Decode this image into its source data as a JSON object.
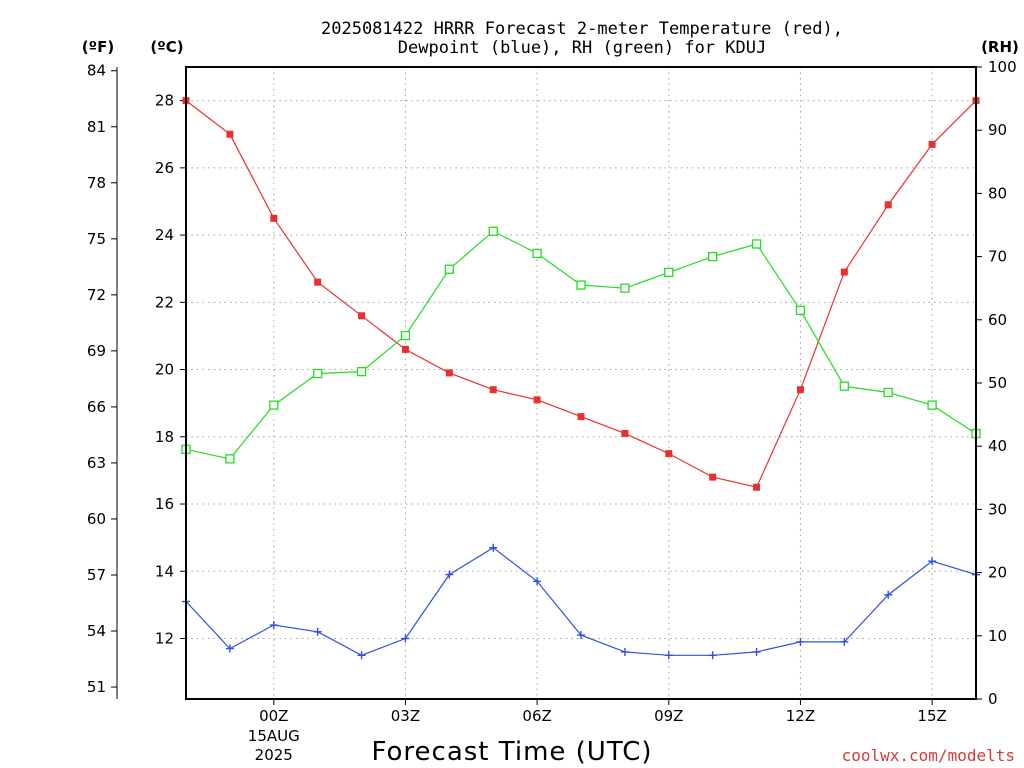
{
  "chart_data": {
    "type": "line",
    "title": [
      "2025081422 HRRR Forecast 2-meter Temperature (red),",
      "Dewpoint (blue), RH (green) for KDUJ"
    ],
    "xlabel": "Forecast Time (UTC)",
    "credit": "coolwx.com/modelts",
    "units": {
      "left_f": "(ºF)",
      "left_c": "(ºC)",
      "right_rh": "(RH)"
    },
    "x_hours": [
      -2,
      -1,
      0,
      1,
      2,
      3,
      4,
      5,
      6,
      7,
      8,
      9,
      10,
      11,
      12,
      13,
      14,
      15,
      16
    ],
    "x_ticks": [
      {
        "hour": 0,
        "label": "00Z",
        "sub": [
          "15AUG",
          "2025"
        ]
      },
      {
        "hour": 3,
        "label": "03Z"
      },
      {
        "hour": 6,
        "label": "06Z"
      },
      {
        "hour": 9,
        "label": "09Z"
      },
      {
        "hour": 12,
        "label": "12Z"
      },
      {
        "hour": 15,
        "label": "15Z"
      }
    ],
    "xlim": [
      -2,
      16
    ],
    "celsius_axis": {
      "ylim": [
        10.2,
        29.0
      ],
      "ticks": [
        12,
        14,
        16,
        18,
        20,
        22,
        24,
        26,
        28
      ]
    },
    "fahrenheit_ticks": [
      51,
      54,
      57,
      60,
      63,
      66,
      69,
      72,
      75,
      78,
      81,
      84
    ],
    "rh_axis": {
      "ylim": [
        0,
        100
      ],
      "ticks": [
        0,
        10,
        20,
        30,
        40,
        50,
        60,
        70,
        80,
        90,
        100
      ]
    },
    "grid": true,
    "series": [
      {
        "name": "Temperature",
        "axis": "celsius",
        "color": "#e83030",
        "marker": "filled-square",
        "values": [
          28.0,
          27.0,
          24.5,
          22.6,
          21.6,
          20.6,
          19.9,
          19.4,
          19.1,
          18.6,
          18.1,
          17.5,
          16.8,
          16.5,
          19.4,
          22.9,
          24.9,
          26.7,
          28.0
        ]
      },
      {
        "name": "Dewpoint",
        "axis": "celsius",
        "color": "#3050e0",
        "marker": "plus",
        "values": [
          13.1,
          11.7,
          12.4,
          12.2,
          11.5,
          12.0,
          13.9,
          14.7,
          13.7,
          12.1,
          11.6,
          11.5,
          11.5,
          11.6,
          11.9,
          11.9,
          13.3,
          14.3,
          13.9
        ]
      },
      {
        "name": "Relative Humidity",
        "axis": "rh",
        "color": "#22dd22",
        "marker": "open-square",
        "values": [
          39.5,
          38.0,
          46.5,
          51.5,
          51.8,
          57.5,
          68.0,
          74.0,
          70.5,
          65.5,
          65.0,
          67.5,
          70.0,
          72.0,
          61.5,
          49.5,
          48.5,
          46.5,
          42.0
        ]
      }
    ]
  }
}
